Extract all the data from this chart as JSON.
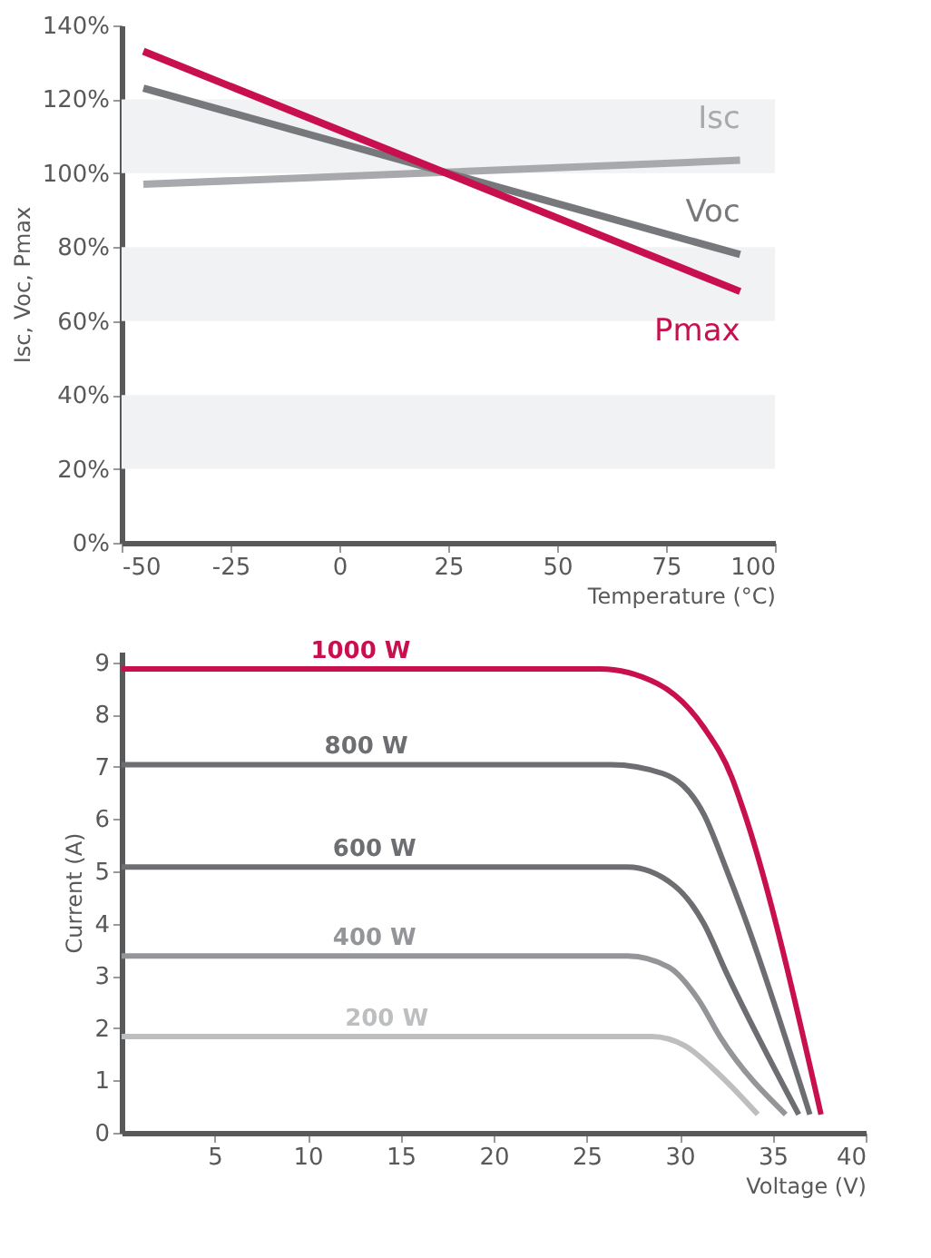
{
  "chart_data": [
    {
      "type": "line",
      "xlabel": "Temperature (°C)",
      "ylabel": "Isc, Voc, Pmax",
      "xlim": [
        -50,
        100
      ],
      "xticks": [
        -50,
        -25,
        0,
        25,
        50,
        75,
        100
      ],
      "ylim": [
        0,
        140
      ],
      "yticks": [
        {
          "value": 0,
          "label": "0%"
        },
        {
          "value": 20,
          "label": "20%"
        },
        {
          "value": 40,
          "label": "40%"
        },
        {
          "value": 60,
          "label": "60%"
        },
        {
          "value": 80,
          "label": "80%"
        },
        {
          "value": 100,
          "label": "100%"
        },
        {
          "value": 120,
          "label": "120%"
        },
        {
          "value": 140,
          "label": "140%"
        }
      ],
      "bands": [
        {
          "axis": "y",
          "from": 20,
          "to": 40,
          "color": "#f1f2f3"
        },
        {
          "axis": "y",
          "from": 60,
          "to": 80,
          "color": "#f1f2f3"
        },
        {
          "axis": "y",
          "from": 100,
          "to": 120,
          "color": "#f1f2f3"
        }
      ],
      "series": [
        {
          "name": "Isc",
          "color": "#a7a9ac",
          "x": [
            -45,
            92
          ],
          "values": [
            97,
            103.5
          ]
        },
        {
          "name": "Voc",
          "color": "#77787b",
          "x": [
            -45,
            92
          ],
          "values": [
            123,
            78
          ]
        },
        {
          "name": "Pmax",
          "color": "#c8104e",
          "x": [
            -45,
            92
          ],
          "values": [
            133,
            68
          ]
        }
      ],
      "grid": false,
      "marker": "none",
      "line_style": "solid"
    },
    {
      "type": "line",
      "xlabel": "Voltage (V)",
      "ylabel": "Current (A)",
      "xlim": [
        0,
        40
      ],
      "xticks": [
        5,
        10,
        15,
        20,
        25,
        30,
        35,
        40
      ],
      "ylim": [
        0,
        9.2
      ],
      "yticks": [
        0,
        1,
        2,
        3,
        4,
        5,
        6,
        7,
        8,
        9
      ],
      "series": [
        {
          "name": "1000 W",
          "color": "#c8104e",
          "x": [
            0,
            25.7,
            28.8,
            31.3,
            32.8,
            33.4,
            37.6
          ],
          "values": [
            8.87,
            8.87,
            8.59,
            7.75,
            6.8,
            6.2,
            0.35
          ]
        },
        {
          "name": "800 W",
          "color": "#6d6e71",
          "x": [
            0,
            26.3,
            29.1,
            31.3,
            32.5,
            33.4,
            37.0
          ],
          "values": [
            7.04,
            7.04,
            6.87,
            6.09,
            5.05,
            4.21,
            0.35
          ]
        },
        {
          "name": "600 W",
          "color": "#6d6e71",
          "x": [
            0,
            27.2,
            29.7,
            31.3,
            32.5,
            36.4
          ],
          "values": [
            5.08,
            5.08,
            4.73,
            4.0,
            3.07,
            0.35
          ]
        },
        {
          "name": "400 W",
          "color": "#939598",
          "x": [
            0,
            27.2,
            29.4,
            31.0,
            32.2,
            35.7
          ],
          "values": [
            3.38,
            3.38,
            3.17,
            2.55,
            1.82,
            0.35
          ]
        },
        {
          "name": "200 W",
          "color": "#bcbec0",
          "x": [
            0,
            28.5,
            30.3,
            32.2,
            34.2
          ],
          "values": [
            1.84,
            1.84,
            1.66,
            1.09,
            0.35
          ]
        }
      ],
      "grid": false,
      "marker": "none",
      "line_style": "solid"
    }
  ]
}
